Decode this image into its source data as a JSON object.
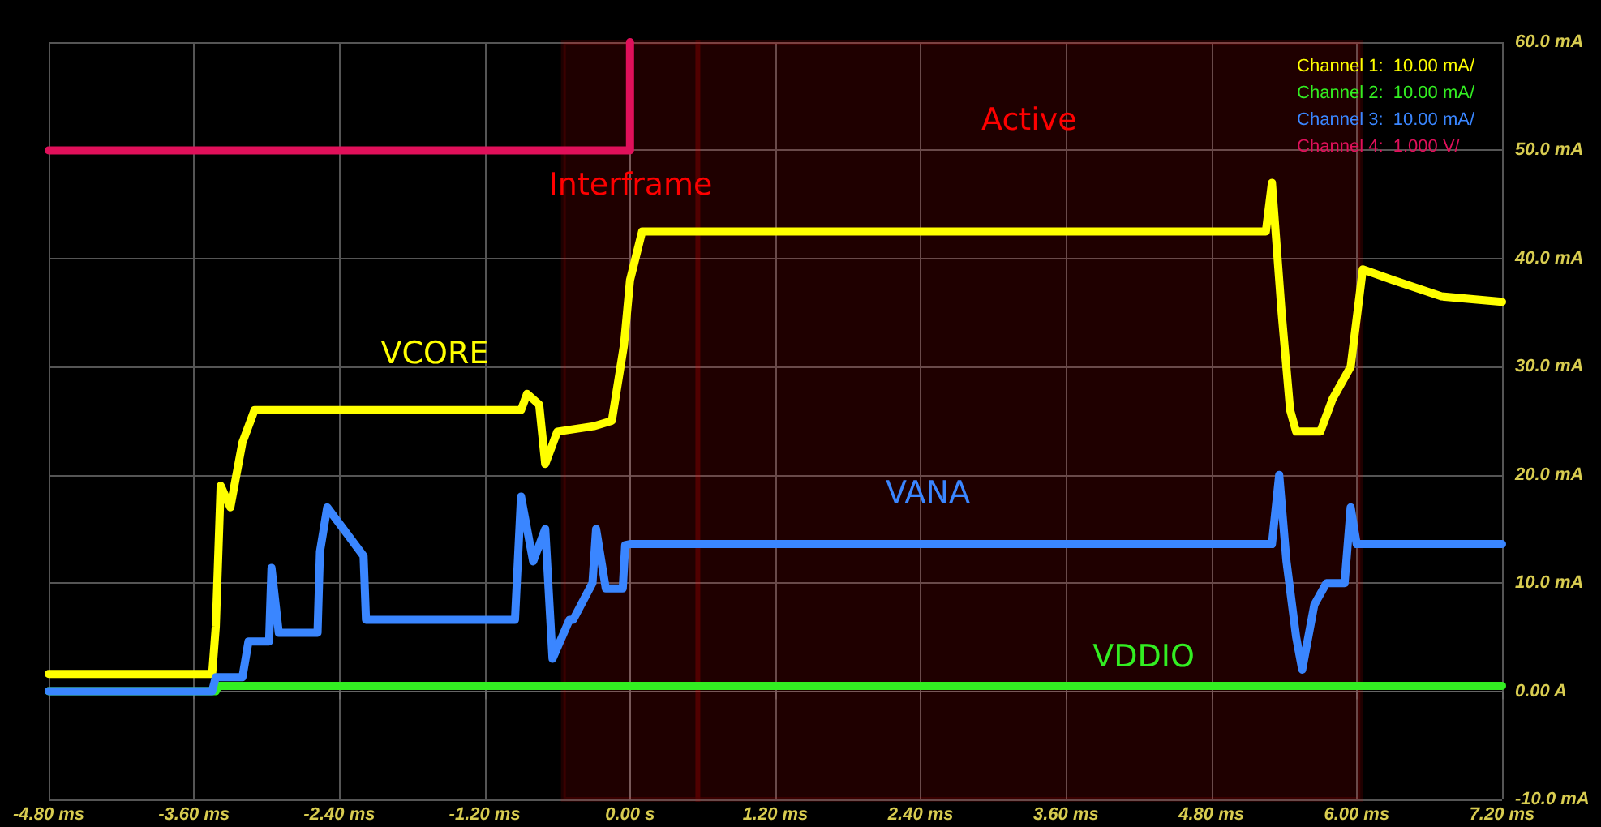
{
  "chart_data": {
    "type": "line",
    "xlim": [
      -4.8,
      7.2
    ],
    "xticks": [
      {
        "value": -4.8,
        "label": "-4.80 ms"
      },
      {
        "value": -3.6,
        "label": "-3.60 ms"
      },
      {
        "value": -2.4,
        "label": "-2.40 ms"
      },
      {
        "value": -1.2,
        "label": "-1.20 ms"
      },
      {
        "value": 0,
        "label": "0.00 s"
      },
      {
        "value": 1.2,
        "label": "1.20 ms"
      },
      {
        "value": 2.4,
        "label": "2.40 ms"
      },
      {
        "value": 3.6,
        "label": "3.60 ms"
      },
      {
        "value": 4.8,
        "label": "4.80 ms"
      },
      {
        "value": 6.0,
        "label": "6.00 ms"
      },
      {
        "value": 7.2,
        "label": "7.20 ms"
      }
    ],
    "ylim": [
      -10,
      60
    ],
    "yticks": [
      {
        "value": -10,
        "label": "-10.0 mA"
      },
      {
        "value": 0,
        "label": "0.00 A"
      },
      {
        "value": 10,
        "label": "10.0 mA"
      },
      {
        "value": 20,
        "label": "20.0 mA"
      },
      {
        "value": 30,
        "label": "30.0 mA"
      },
      {
        "value": 40,
        "label": "40.0 mA"
      },
      {
        "value": 50,
        "label": "50.0 mA"
      },
      {
        "value": 60,
        "label": "60.0 mA"
      }
    ],
    "grid": true,
    "legend": "top right",
    "series": [
      {
        "name": "Channel 1:  10.00 mA/",
        "color": "#ffff00",
        "x": [
          -4.8,
          -3.45,
          -3.42,
          -3.38,
          -3.3,
          -3.2,
          -3.1,
          -2.95,
          -0.9,
          -0.85,
          -0.75,
          -0.7,
          -0.6,
          -0.3,
          -0.15,
          -0.05,
          0.0,
          0.1,
          0.2,
          5.25,
          5.3,
          5.38,
          5.45,
          5.5,
          5.7,
          5.8,
          5.95,
          6.05,
          6.3,
          6.7,
          7.2
        ],
        "values": [
          1.6,
          1.6,
          6,
          19,
          17,
          23,
          26,
          26,
          26,
          27.5,
          26.5,
          21,
          24,
          24.5,
          25,
          32,
          38,
          42.5,
          42.5,
          42.5,
          47,
          35,
          26,
          24,
          24,
          27,
          30,
          39,
          38,
          36.5,
          36
        ]
      },
      {
        "name": "Channel 2:  10.00 mA/",
        "color": "#33ee22",
        "x": [
          -4.8,
          -3.42,
          -3.4,
          0,
          3.6,
          7.2
        ],
        "values": [
          0,
          0,
          0.5,
          0.5,
          0.5,
          0.5
        ]
      },
      {
        "name": "Channel 3:  10.00 mA/",
        "color": "#3a86ff",
        "x": [
          -4.8,
          -3.45,
          -3.42,
          -3.2,
          -3.15,
          -2.98,
          -2.96,
          -2.9,
          -2.58,
          -2.56,
          -2.5,
          -2.2,
          -2.18,
          -0.95,
          -0.9,
          -0.8,
          -0.7,
          -0.64,
          -0.5,
          -0.47,
          -0.31,
          -0.28,
          -0.2,
          -0.06,
          -0.04,
          0.0,
          5.3,
          5.36,
          5.42,
          5.5,
          5.55,
          5.65,
          5.75,
          5.9,
          5.95,
          6.0,
          7.2
        ],
        "values": [
          0,
          0,
          1.3,
          1.3,
          4.6,
          4.6,
          11.4,
          5.4,
          5.4,
          12.9,
          17,
          12.5,
          6.6,
          6.6,
          18,
          12,
          15,
          3,
          6.6,
          6.6,
          10,
          15,
          9.5,
          9.5,
          13.5,
          13.6,
          13.6,
          20,
          12,
          5,
          2,
          8,
          10,
          10,
          17,
          13.6,
          13.6
        ]
      },
      {
        "name": "Channel 4:  1.000 V/",
        "color": "#e0105a",
        "x": [
          -4.8,
          0,
          0
        ],
        "values": [
          50,
          50,
          60
        ]
      }
    ],
    "bands": [
      {
        "axis": "x",
        "from": -0.55,
        "to": 0.56,
        "label": "Interframe",
        "color": "#ff0000"
      },
      {
        "axis": "x",
        "from": 0.56,
        "to": 6.03,
        "label": "Active",
        "color": "#ff0000"
      }
    ],
    "annotations": [
      "VCORE",
      "VDDIO",
      "VANA"
    ]
  }
}
